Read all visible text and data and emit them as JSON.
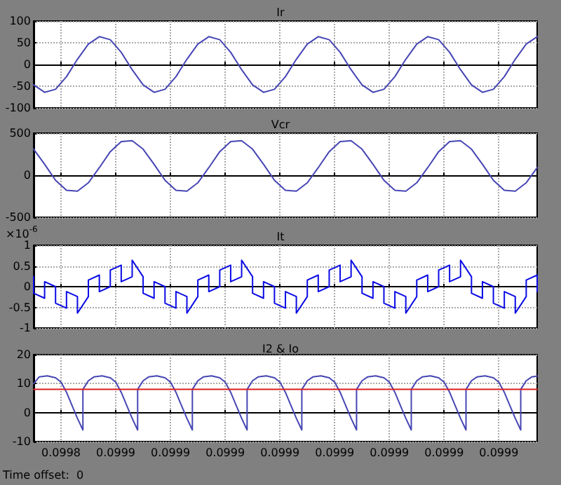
{
  "chart_data": [
    {
      "type": "line",
      "title": "Ir",
      "tick_labels": "y",
      "grid": true,
      "marker": "none",
      "xlim": [
        0.099835,
        0.099927
      ],
      "xticks": [
        {
          "value": 0.09984,
          "label": null
        },
        {
          "value": 0.09985,
          "label": null
        },
        {
          "value": 0.09986,
          "label": null
        },
        {
          "value": 0.09987,
          "label": null
        },
        {
          "value": 0.09988,
          "label": null
        },
        {
          "value": 0.09989,
          "label": null
        },
        {
          "value": 0.0999,
          "label": null
        },
        {
          "value": 0.09991,
          "label": null
        },
        {
          "value": 0.09992,
          "label": null
        }
      ],
      "ylim": [
        -100,
        100
      ],
      "yticks": [
        -100,
        -50,
        0,
        50,
        100
      ],
      "x": [
        0.099835,
        0.099837,
        0.099839,
        0.099841,
        0.099843,
        0.099845,
        0.099847,
        0.099849,
        0.099851,
        0.099853,
        0.099855,
        0.099857,
        0.099859,
        0.099861,
        0.099863,
        0.099865,
        0.099867,
        0.099869,
        0.099871,
        0.099873,
        0.099875,
        0.099877,
        0.099879,
        0.099881,
        0.099883,
        0.099885,
        0.099887,
        0.099889,
        0.099891,
        0.099893,
        0.099895,
        0.099897,
        0.099899,
        0.099901,
        0.099903,
        0.099905,
        0.099907,
        0.099909,
        0.099911,
        0.099913,
        0.099915,
        0.099917,
        0.099919,
        0.099921,
        0.099923,
        0.099925,
        0.099927
      ],
      "series": [
        {
          "color": "#4646b4",
          "values": [
            -47,
            -64,
            -57,
            -28,
            12,
            47,
            64,
            57,
            28,
            -12,
            -47,
            -64,
            -57,
            -28,
            12,
            47,
            64,
            57,
            28,
            -12,
            -47,
            -64,
            -57,
            -28,
            12,
            47,
            64,
            57,
            28,
            -12,
            -47,
            -64,
            -57,
            -28,
            12,
            47,
            64,
            57,
            28,
            -12,
            -47,
            -64,
            -57,
            -28,
            12,
            47,
            64
          ]
        }
      ]
    },
    {
      "type": "line",
      "title": "Vcr",
      "tick_labels": "y",
      "grid": true,
      "marker": "none",
      "xlim": [
        0.099835,
        0.099927
      ],
      "xticks": [
        {
          "value": 0.09984,
          "label": null
        },
        {
          "value": 0.09985,
          "label": null
        },
        {
          "value": 0.09986,
          "label": null
        },
        {
          "value": 0.09987,
          "label": null
        },
        {
          "value": 0.09988,
          "label": null
        },
        {
          "value": 0.09989,
          "label": null
        },
        {
          "value": 0.0999,
          "label": null
        },
        {
          "value": 0.09991,
          "label": null
        },
        {
          "value": 0.09992,
          "label": null
        }
      ],
      "ylim": [
        -500,
        500
      ],
      "yticks": [
        -500,
        0,
        500
      ],
      "x": [
        0.099835,
        0.099837,
        0.099839,
        0.099841,
        0.099843,
        0.099845,
        0.099847,
        0.099849,
        0.099851,
        0.099853,
        0.099855,
        0.099857,
        0.099859,
        0.099861,
        0.099863,
        0.099865,
        0.099867,
        0.099869,
        0.099871,
        0.099873,
        0.099875,
        0.099877,
        0.099879,
        0.099881,
        0.099883,
        0.099885,
        0.099887,
        0.099889,
        0.099891,
        0.099893,
        0.099895,
        0.099897,
        0.099899,
        0.099901,
        0.099903,
        0.099905,
        0.099907,
        0.099909,
        0.099911,
        0.099913,
        0.099915,
        0.099917,
        0.099919,
        0.099921,
        0.099923,
        0.099925,
        0.099927
      ],
      "series": [
        {
          "color": "#4646b4",
          "values": [
            310,
            130,
            -60,
            -180,
            -190,
            -90,
            90,
            280,
            400,
            410,
            310,
            130,
            -60,
            -180,
            -190,
            -90,
            90,
            280,
            400,
            410,
            310,
            130,
            -60,
            -180,
            -190,
            -90,
            90,
            280,
            400,
            410,
            310,
            130,
            -60,
            -180,
            -190,
            -90,
            90,
            280,
            400,
            410,
            310,
            130,
            -60,
            -180,
            -190,
            -90,
            90
          ]
        }
      ]
    },
    {
      "type": "line",
      "title": "It",
      "tick_labels": "y",
      "grid": true,
      "marker": "none",
      "annotations": [
        "×10$^{-6}$"
      ],
      "xlim": [
        0.099835,
        0.099927
      ],
      "xticks": [
        {
          "value": 0.09984,
          "label": null
        },
        {
          "value": 0.09985,
          "label": null
        },
        {
          "value": 0.09986,
          "label": null
        },
        {
          "value": 0.09987,
          "label": null
        },
        {
          "value": 0.09988,
          "label": null
        },
        {
          "value": 0.09989,
          "label": null
        },
        {
          "value": 0.0999,
          "label": null
        },
        {
          "value": 0.09991,
          "label": null
        },
        {
          "value": 0.09992,
          "label": null
        }
      ],
      "ylim": [
        -1,
        1
      ],
      "yticks": [
        -1,
        -0.5,
        0,
        0.5,
        1
      ],
      "x": [
        0.099835,
        0.099835,
        0.099837,
        0.099837,
        0.099839,
        0.099839,
        0.099841,
        0.099841,
        0.099843,
        0.099843,
        0.099845,
        0.099845,
        0.099847,
        0.099847,
        0.099849,
        0.099849,
        0.099851,
        0.099851,
        0.099853,
        0.099853,
        0.099855,
        0.099855,
        0.099857,
        0.099857,
        0.099859,
        0.099859,
        0.099861,
        0.099861,
        0.099863,
        0.099863,
        0.099865,
        0.099865,
        0.099867,
        0.099867,
        0.099869,
        0.099869,
        0.099871,
        0.099871,
        0.099873,
        0.099873,
        0.099875,
        0.099875,
        0.099877,
        0.099877,
        0.099879,
        0.099879,
        0.099881,
        0.099881,
        0.099883,
        0.099883,
        0.099885,
        0.099885,
        0.099887,
        0.099887,
        0.099889,
        0.099889,
        0.099891,
        0.099891,
        0.099893,
        0.099893,
        0.099895,
        0.099895,
        0.099897,
        0.099897,
        0.099899,
        0.099899,
        0.099901,
        0.099901,
        0.099903,
        0.099903,
        0.099905,
        0.099905,
        0.099907,
        0.099907,
        0.099909,
        0.099909,
        0.099911,
        0.099911,
        0.099913,
        0.099913,
        0.099915,
        0.099915,
        0.099917,
        0.099917,
        0.099919,
        0.099919,
        0.099921,
        0.099921,
        0.099923,
        0.099923,
        0.099925,
        0.099925,
        0.099927,
        0.099927
      ],
      "series": [
        {
          "color": "#0a0ae6",
          "values": [
            0.24,
            -0.16,
            -0.28,
            0.12,
            0,
            -0.4,
            -0.52,
            -0.12,
            -0.24,
            -0.64,
            -0.24,
            0.16,
            0.28,
            -0.12,
            0,
            0.4,
            0.52,
            0.12,
            0.24,
            0.64,
            0.24,
            -0.16,
            -0.28,
            0.12,
            0,
            -0.4,
            -0.52,
            -0.12,
            -0.24,
            -0.64,
            -0.24,
            0.16,
            0.28,
            -0.12,
            0,
            0.4,
            0.52,
            0.12,
            0.24,
            0.64,
            0.24,
            -0.16,
            -0.28,
            0.12,
            0,
            -0.4,
            -0.52,
            -0.12,
            -0.24,
            -0.64,
            -0.24,
            0.16,
            0.28,
            -0.12,
            0,
            0.4,
            0.52,
            0.12,
            0.24,
            0.64,
            0.24,
            -0.16,
            -0.28,
            0.12,
            0,
            -0.4,
            -0.52,
            -0.12,
            -0.24,
            -0.64,
            -0.24,
            0.16,
            0.28,
            -0.12,
            0,
            0.4,
            0.52,
            0.12,
            0.24,
            0.64,
            0.24,
            -0.16,
            -0.28,
            0.12,
            0,
            -0.4,
            -0.52,
            -0.12,
            -0.24,
            -0.64,
            -0.24,
            0.16,
            0.28,
            -0.12
          ]
        }
      ]
    },
    {
      "type": "line",
      "title": "I2 & Io",
      "grid": true,
      "marker": "none",
      "annotations": [
        "Time offset:  0"
      ],
      "xlim": [
        0.099835,
        0.099927
      ],
      "xticks": [
        {
          "value": 0.09984,
          "label": "0.0998"
        },
        {
          "value": 0.09985,
          "label": "0.0999"
        },
        {
          "value": 0.09986,
          "label": "0.0999"
        },
        {
          "value": 0.09987,
          "label": "0.0999"
        },
        {
          "value": 0.09988,
          "label": "0.0999"
        },
        {
          "value": 0.09989,
          "label": "0.0999"
        },
        {
          "value": 0.0999,
          "label": "0.0999"
        },
        {
          "value": 0.09991,
          "label": "0.0999"
        },
        {
          "value": 0.09992,
          "label": "0.0999"
        }
      ],
      "ylim": [
        -10,
        20
      ],
      "yticks": [
        -10,
        0,
        10,
        20
      ],
      "series": [
        {
          "color": "#4646b4",
          "x": [
            0.099835,
            0.099836,
            0.0998375,
            0.099839,
            0.09984,
            0.099841,
            0.099842,
            0.099843,
            0.099844,
            0.099844,
            0.099845,
            0.099846,
            0.0998475,
            0.099849,
            0.09985,
            0.099851,
            0.099852,
            0.099853,
            0.099854,
            0.099854,
            0.099855,
            0.099856,
            0.0998575,
            0.099859,
            0.09986,
            0.099861,
            0.099862,
            0.099863,
            0.099864,
            0.099864,
            0.099865,
            0.099866,
            0.0998675,
            0.099869,
            0.09987,
            0.099871,
            0.099872,
            0.099873,
            0.099874,
            0.099874,
            0.099875,
            0.099876,
            0.0998775,
            0.099879,
            0.09988,
            0.099881,
            0.099882,
            0.099883,
            0.099884,
            0.099884,
            0.099885,
            0.099886,
            0.0998875,
            0.099889,
            0.09989,
            0.099891,
            0.099892,
            0.099893,
            0.099894,
            0.099894,
            0.099895,
            0.099896,
            0.0998975,
            0.099899,
            0.0999,
            0.099901,
            0.099902,
            0.099903,
            0.099904,
            0.099904,
            0.099905,
            0.099906,
            0.0999075,
            0.099909,
            0.09991,
            0.099911,
            0.099912,
            0.099913,
            0.099914,
            0.099914,
            0.099915,
            0.099916,
            0.0999175,
            0.099919,
            0.09992,
            0.099921,
            0.099922,
            0.099923,
            0.099924,
            0.099924,
            0.099925,
            0.099926,
            0.099927
          ],
          "values": [
            10,
            12.3,
            12.7,
            12,
            10.5,
            7,
            2.5,
            -2,
            -6,
            8,
            11,
            12.3,
            12.7,
            12,
            10.5,
            7,
            2.5,
            -2,
            -6,
            8,
            11,
            12.3,
            12.7,
            12,
            10.5,
            7,
            2.5,
            -2,
            -6,
            8,
            11,
            12.3,
            12.7,
            12,
            10.5,
            7,
            2.5,
            -2,
            -6,
            8,
            11,
            12.3,
            12.7,
            12,
            10.5,
            7,
            2.5,
            -2,
            -6,
            8,
            11,
            12.3,
            12.7,
            12,
            10.5,
            7,
            2.5,
            -2,
            -6,
            8,
            11,
            12.3,
            12.7,
            12,
            10.5,
            7,
            2.5,
            -2,
            -6,
            8,
            11,
            12.3,
            12.7,
            12,
            10.5,
            7,
            2.5,
            -2,
            -6,
            8,
            11,
            12.3,
            12.7,
            12,
            10.5,
            7,
            2.5,
            -2,
            -6,
            8,
            11,
            12.3,
            12.6
          ]
        },
        {
          "color": "#dc2020",
          "x": [
            0.099835,
            0.099927
          ],
          "values": [
            8,
            8
          ]
        }
      ]
    }
  ]
}
